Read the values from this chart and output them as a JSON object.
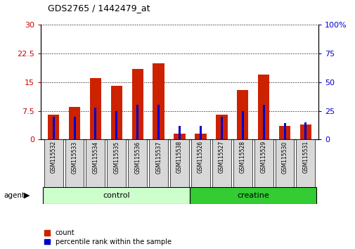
{
  "title": "GDS2765 / 1442479_at",
  "samples": [
    "GSM115532",
    "GSM115533",
    "GSM115534",
    "GSM115535",
    "GSM115536",
    "GSM115537",
    "GSM115538",
    "GSM115526",
    "GSM115527",
    "GSM115528",
    "GSM115529",
    "GSM115530",
    "GSM115531"
  ],
  "count_values": [
    6.5,
    8.5,
    16.0,
    14.0,
    18.5,
    20.0,
    1.5,
    1.5,
    6.5,
    13.0,
    17.0,
    3.5,
    4.0
  ],
  "percentile_values": [
    20,
    20,
    28,
    25,
    30,
    30,
    12,
    12,
    20,
    25,
    30,
    14,
    15
  ],
  "groups": [
    {
      "label": "control",
      "start": 0,
      "end": 7,
      "color": "#ccffcc"
    },
    {
      "label": "creatine",
      "start": 7,
      "end": 13,
      "color": "#33cc33"
    }
  ],
  "left_yticks": [
    0,
    7.5,
    15,
    22.5,
    30
  ],
  "right_yticks": [
    0,
    25,
    50,
    75,
    100
  ],
  "left_ytick_labels": [
    "0",
    "7.5",
    "15",
    "22.5",
    "30"
  ],
  "right_ytick_labels": [
    "0",
    "25",
    "50",
    "75",
    "100%"
  ],
  "left_color": "#cc0000",
  "right_color": "#0000cc",
  "bar_color_red": "#cc2200",
  "bar_color_blue": "#0000cc",
  "agent_label": "agent",
  "legend_count": "count",
  "legend_pct": "percentile rank within the sample",
  "bar_width": 0.55,
  "blue_bar_width": 0.1,
  "ylim_left": [
    0,
    30
  ],
  "ylim_right": [
    0,
    100
  ],
  "n_samples": 13,
  "n_control": 7,
  "n_creatine": 6
}
